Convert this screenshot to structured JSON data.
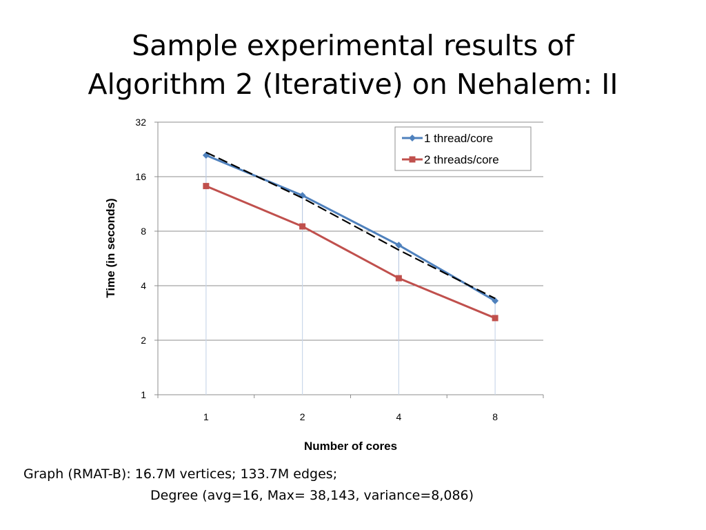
{
  "slide": {
    "title_line1": "Sample experimental results of",
    "title_line2": "Algorithm 2 (Iterative) on Nehalem: II",
    "caption_line1": "Graph (RMAT-B): 16.7M vertices; 133.7M edges;",
    "caption_line2": "Degree (avg=16, Max= 38,143, variance=8,086)"
  },
  "chart_data": {
    "type": "line",
    "title": "",
    "xlabel": "Number of cores",
    "ylabel": "Time (in seconds)",
    "y_scale": "log2",
    "ylim": [
      1,
      32
    ],
    "yticks": [
      1,
      2,
      4,
      8,
      16,
      32
    ],
    "categories": [
      "1",
      "2",
      "4",
      "8"
    ],
    "grid": true,
    "legend_position": "top-right",
    "series": [
      {
        "name": "1 thread/core",
        "values": [
          21,
          12.6,
          6.7,
          3.3
        ],
        "color": "#4f81bd",
        "marker": "diamond"
      },
      {
        "name": "2 threads/core",
        "values": [
          14.2,
          8.5,
          4.4,
          2.65
        ],
        "color": "#c0504d",
        "marker": "square"
      }
    ],
    "ideal_line": {
      "values": [
        21.8,
        12.2,
        6.3,
        3.4
      ],
      "color": "#000000",
      "style": "dashed"
    }
  }
}
